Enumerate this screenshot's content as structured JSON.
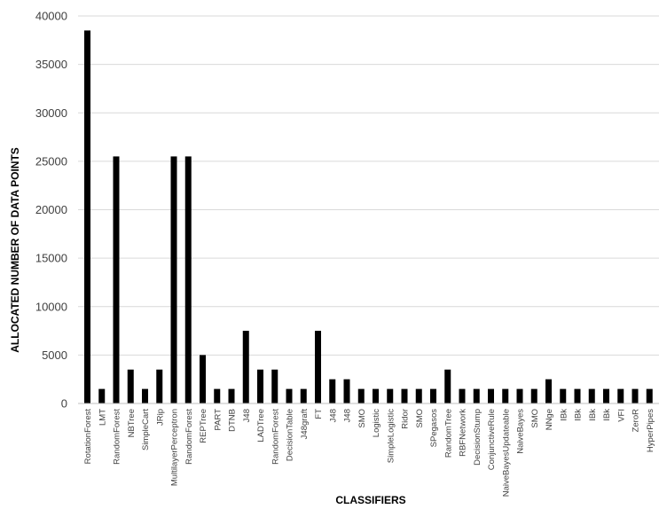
{
  "chart_data": {
    "type": "bar",
    "title": "",
    "xlabel": "CLASSIFIERS",
    "ylabel": "ALLOCATED NUMBER OF DATA POINTS",
    "ylim": [
      0,
      40000
    ],
    "yticks": [
      0,
      5000,
      10000,
      15000,
      20000,
      25000,
      30000,
      35000,
      40000
    ],
    "grid": "horizontal",
    "legend": "none",
    "bar_color": "#000000",
    "categories": [
      "RotationForest",
      "LMT",
      "RandomForest",
      "NBTree",
      "SimpleCart",
      "JRip",
      "MultilayerPerceptron",
      "RandomForest",
      "REPTree",
      "PART",
      "DTNB",
      "J48",
      "LADTree",
      "RandomForest",
      "DecisionTable",
      "J48graft",
      "FT",
      "J48",
      "J48",
      "SMO",
      "Logistic",
      "SimpleLogistic",
      "Ridor",
      "SMO",
      "SPegasos",
      "RandomTree",
      "RBFNetwork",
      "DecisionStump",
      "ConjunctiveRule",
      "NaiveBayesUpdateable",
      "NaiveBayes",
      "SMO",
      "NNge",
      "IBk",
      "IBk",
      "IBk",
      "IBk",
      "VFI",
      "ZeroR",
      "HyperPipes"
    ],
    "values": [
      38500,
      1500,
      25500,
      3500,
      1500,
      3500,
      25500,
      25500,
      5000,
      1500,
      1500,
      7500,
      3500,
      3500,
      1500,
      1500,
      7500,
      2500,
      2500,
      1500,
      1500,
      1500,
      1500,
      1500,
      1500,
      3500,
      1500,
      1500,
      1500,
      1500,
      1500,
      1500,
      2500,
      1500,
      1500,
      1500,
      1500,
      1500,
      1500,
      1500
    ]
  }
}
